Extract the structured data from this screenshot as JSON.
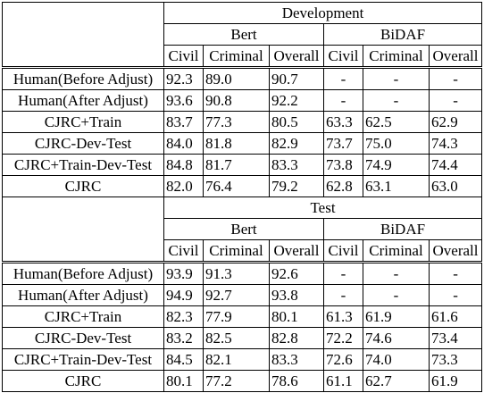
{
  "sections": [
    {
      "title": "Development",
      "groups": [
        {
          "label": "Bert",
          "columns": [
            "Civil",
            "Criminal",
            "Overall"
          ]
        },
        {
          "label": "BiDAF",
          "columns": [
            "Civil",
            "Criminal",
            "Overall"
          ]
        }
      ],
      "rows": [
        {
          "label": "Human(Before Adjust)",
          "values": [
            "92.3",
            "89.0",
            "90.7",
            "-",
            "-",
            "-"
          ]
        },
        {
          "label": "Human(After Adjust)",
          "values": [
            "93.6",
            "90.8",
            "92.2",
            "-",
            "-",
            "-"
          ]
        },
        {
          "label": "CJRC+Train",
          "values": [
            "83.7",
            "77.3",
            "80.5",
            "63.3",
            "62.5",
            "62.9"
          ]
        },
        {
          "label": "CJRC-Dev-Test",
          "values": [
            "84.0",
            "81.8",
            "82.9",
            "73.7",
            "75.0",
            "74.3"
          ]
        },
        {
          "label": "CJRC+Train-Dev-Test",
          "values": [
            "84.8",
            "81.7",
            "83.3",
            "73.8",
            "74.9",
            "74.4"
          ]
        },
        {
          "label": "CJRC",
          "values": [
            "82.0",
            "76.4",
            "79.2",
            "62.8",
            "63.1",
            "63.0"
          ]
        }
      ]
    },
    {
      "title": "Test",
      "groups": [
        {
          "label": "Bert",
          "columns": [
            "Civil",
            "Criminal",
            "Overall"
          ]
        },
        {
          "label": "BiDAF",
          "columns": [
            "Civil",
            "Criminal",
            "Overall"
          ]
        }
      ],
      "rows": [
        {
          "label": "Human(Before Adjust)",
          "values": [
            "93.9",
            "91.3",
            "92.6",
            "-",
            "-",
            "-"
          ]
        },
        {
          "label": "Human(After Adjust)",
          "values": [
            "94.9",
            "92.7",
            "93.8",
            "-",
            "-",
            "-"
          ]
        },
        {
          "label": "CJRC+Train",
          "values": [
            "82.3",
            "77.9",
            "80.1",
            "61.3",
            "61.9",
            "61.6"
          ]
        },
        {
          "label": "CJRC-Dev-Test",
          "values": [
            "83.2",
            "82.5",
            "82.8",
            "72.2",
            "74.6",
            "73.4"
          ]
        },
        {
          "label": "CJRC+Train-Dev-Test",
          "values": [
            "84.5",
            "82.1",
            "83.3",
            "72.6",
            "74.0",
            "73.3"
          ]
        },
        {
          "label": "CJRC",
          "values": [
            "80.1",
            "77.2",
            "78.6",
            "61.1",
            "62.7",
            "61.9"
          ]
        }
      ]
    }
  ]
}
